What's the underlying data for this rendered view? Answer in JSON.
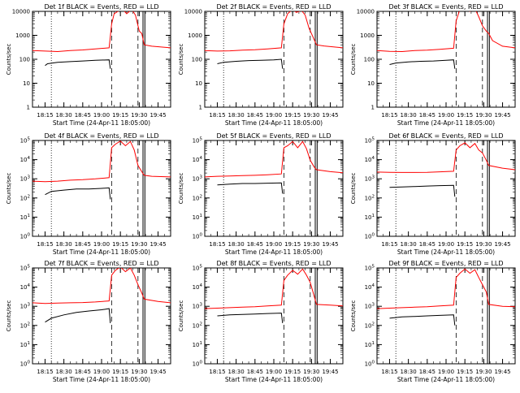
{
  "colors": {
    "events": "#000000",
    "lld": "#ff0000",
    "axis": "#000000",
    "background": "#ffffff"
  },
  "shared": {
    "xlabel": "Start Time (24-Apr-11 18:05:00)",
    "ylabel": "Counts/sec",
    "x_ticks": [
      "18:15",
      "18:30",
      "18:45",
      "19:00",
      "19:15",
      "19:30",
      "19:45"
    ],
    "x_tick_minutes": [
      10,
      25,
      40,
      55,
      70,
      85,
      100
    ],
    "x_range_minutes": [
      0,
      110
    ],
    "y_scale": "log",
    "y_range": [
      1,
      10000
    ],
    "dotted_marker_minutes": 15,
    "dashed_marker_minutes": [
      63,
      84
    ],
    "solid_marker_minutes": [
      88,
      89.5
    ]
  },
  "chart_data": [
    {
      "type": "line",
      "title": "Det 1f BLACK = Events, RED = LLD",
      "ytick_style": "plain",
      "y_ticks": [
        "1",
        "10",
        "100",
        "1000",
        "10000"
      ],
      "series": [
        {
          "name": "BLACK = Events",
          "points": [
            [
              10,
              55
            ],
            [
              12,
              65
            ],
            [
              20,
              75
            ],
            [
              30,
              80
            ],
            [
              40,
              85
            ],
            [
              50,
              90
            ],
            [
              61,
              95
            ],
            [
              62,
              40
            ]
          ]
        },
        {
          "name": "RED = LLD",
          "points": [
            [
              0,
              230
            ],
            [
              10,
              220
            ],
            [
              20,
              210
            ],
            [
              30,
              230
            ],
            [
              40,
              245
            ],
            [
              50,
              270
            ],
            [
              61,
              300
            ],
            [
              63,
              3000
            ],
            [
              65,
              8000
            ],
            [
              68,
              10000
            ],
            [
              72,
              12000
            ],
            [
              75,
              8000
            ],
            [
              79,
              12000
            ],
            [
              82,
              7000
            ],
            [
              85,
              1500
            ],
            [
              87,
              1200
            ],
            [
              89,
              400
            ],
            [
              95,
              350
            ],
            [
              110,
              300
            ]
          ]
        }
      ]
    },
    {
      "type": "line",
      "title": "Det 2f BLACK = Events, RED = LLD",
      "ytick_style": "plain",
      "y_ticks": [
        "1",
        "10",
        "100",
        "1000",
        "10000"
      ],
      "series": [
        {
          "name": "BLACK = Events",
          "points": [
            [
              10,
              65
            ],
            [
              15,
              75
            ],
            [
              25,
              82
            ],
            [
              35,
              88
            ],
            [
              45,
              90
            ],
            [
              55,
              95
            ],
            [
              61,
              100
            ],
            [
              62,
              40
            ]
          ]
        },
        {
          "name": "RED = LLD",
          "points": [
            [
              0,
              230
            ],
            [
              10,
              220
            ],
            [
              20,
              225
            ],
            [
              30,
              240
            ],
            [
              40,
              250
            ],
            [
              50,
              270
            ],
            [
              61,
              300
            ],
            [
              63,
              3000
            ],
            [
              66,
              8000
            ],
            [
              70,
              12000
            ],
            [
              73,
              9000
            ],
            [
              77,
              11000
            ],
            [
              80,
              7000
            ],
            [
              83,
              2000
            ],
            [
              86,
              900
            ],
            [
              89,
              400
            ],
            [
              95,
              360
            ],
            [
              110,
              300
            ]
          ]
        }
      ]
    },
    {
      "type": "line",
      "title": "Det 3f BLACK = Events, RED = LLD",
      "ytick_style": "plain",
      "y_ticks": [
        "1",
        "10",
        "100",
        "1000",
        "10000"
      ],
      "series": [
        {
          "name": "BLACK = Events",
          "points": [
            [
              10,
              60
            ],
            [
              15,
              70
            ],
            [
              25,
              78
            ],
            [
              35,
              82
            ],
            [
              45,
              85
            ],
            [
              55,
              90
            ],
            [
              61,
              95
            ],
            [
              62,
              40
            ]
          ]
        },
        {
          "name": "RED = LLD",
          "points": [
            [
              0,
              230
            ],
            [
              10,
              215
            ],
            [
              20,
              210
            ],
            [
              30,
              230
            ],
            [
              40,
              240
            ],
            [
              50,
              260
            ],
            [
              61,
              290
            ],
            [
              63,
              4000
            ],
            [
              66,
              12000
            ],
            [
              70,
              14000
            ],
            [
              74,
              10000
            ],
            [
              78,
              13000
            ],
            [
              81,
              6000
            ],
            [
              84,
              2500
            ],
            [
              87,
              1500
            ],
            [
              89,
              1200
            ],
            [
              92,
              600
            ],
            [
              100,
              350
            ],
            [
              110,
              300
            ]
          ]
        }
      ]
    },
    {
      "type": "line",
      "title": "Det 4f BLACK = Events, RED = LLD",
      "ytick_style": "power",
      "y_ticks": [
        "0",
        "1",
        "2",
        "3",
        "4",
        "5"
      ],
      "series": [
        {
          "name": "BLACK = Events",
          "points": [
            [
              10,
              55
            ],
            [
              15,
              75
            ],
            [
              25,
              85
            ],
            [
              35,
              95
            ],
            [
              45,
              95
            ],
            [
              55,
              100
            ],
            [
              61,
              105
            ],
            [
              62,
              35
            ]
          ]
        },
        {
          "name": "RED = LLD",
          "points": [
            [
              0,
              200
            ],
            [
              10,
              190
            ],
            [
              20,
              200
            ],
            [
              30,
              220
            ],
            [
              40,
              230
            ],
            [
              50,
              250
            ],
            [
              61,
              280
            ],
            [
              63,
              5000
            ],
            [
              66,
              7000
            ],
            [
              70,
              9500
            ],
            [
              74,
              6000
            ],
            [
              78,
              9000
            ],
            [
              81,
              4000
            ],
            [
              84,
              900
            ],
            [
              87,
              500
            ],
            [
              89,
              350
            ],
            [
              95,
              320
            ],
            [
              110,
              300
            ]
          ]
        }
      ]
    },
    {
      "type": "line",
      "title": "Det 5f BLACK = Events, RED = LLD",
      "ytick_style": "power",
      "y_ticks": [
        "0",
        "1",
        "2",
        "3",
        "4",
        "5"
      ],
      "series": [
        {
          "name": "BLACK = Events",
          "points": [
            [
              10,
              140
            ],
            [
              20,
              150
            ],
            [
              30,
              160
            ],
            [
              40,
              160
            ],
            [
              50,
              165
            ],
            [
              61,
              170
            ],
            [
              62,
              60
            ]
          ]
        },
        {
          "name": "RED = LLD",
          "points": [
            [
              0,
              300
            ],
            [
              10,
              320
            ],
            [
              20,
              330
            ],
            [
              30,
              340
            ],
            [
              40,
              350
            ],
            [
              50,
              370
            ],
            [
              61,
              400
            ],
            [
              63,
              5000
            ],
            [
              66,
              6000
            ],
            [
              70,
              9000
            ],
            [
              74,
              5000
            ],
            [
              78,
              9000
            ],
            [
              81,
              4500
            ],
            [
              84,
              1500
            ],
            [
              87,
              800
            ],
            [
              89,
              600
            ],
            [
              100,
              500
            ],
            [
              110,
              450
            ]
          ]
        }
      ]
    },
    {
      "type": "line",
      "title": "Det 6f BLACK = Events, RED = LLD",
      "ytick_style": "power",
      "y_ticks": [
        "0",
        "1",
        "2",
        "3",
        "4",
        "5"
      ],
      "series": [
        {
          "name": "BLACK = Events",
          "points": [
            [
              10,
              110
            ],
            [
              20,
              115
            ],
            [
              30,
              120
            ],
            [
              40,
              125
            ],
            [
              50,
              130
            ],
            [
              61,
              135
            ],
            [
              62,
              45
            ]
          ]
        },
        {
          "name": "RED = LLD",
          "points": [
            [
              0,
              480
            ],
            [
              10,
              470
            ],
            [
              20,
              460
            ],
            [
              30,
              460
            ],
            [
              40,
              470
            ],
            [
              50,
              490
            ],
            [
              61,
              520
            ],
            [
              63,
              4000
            ],
            [
              66,
              6000
            ],
            [
              70,
              8000
            ],
            [
              74,
              5000
            ],
            [
              78,
              7500
            ],
            [
              81,
              4000
            ],
            [
              84,
              3000
            ],
            [
              87,
              1500
            ],
            [
              89,
              900
            ],
            [
              100,
              700
            ],
            [
              110,
              600
            ]
          ]
        }
      ]
    },
    {
      "type": "line",
      "title": "Det 7f BLACK = Events, RED = LLD",
      "ytick_style": "power",
      "y_ticks": [
        "0",
        "1",
        "2",
        "3",
        "4",
        "5"
      ],
      "series": [
        {
          "name": "BLACK = Events",
          "points": [
            [
              10,
              55
            ],
            [
              15,
              80
            ],
            [
              25,
              110
            ],
            [
              35,
              140
            ],
            [
              45,
              160
            ],
            [
              55,
              180
            ],
            [
              61,
              200
            ],
            [
              62,
              50
            ]
          ]
        },
        {
          "name": "RED = LLD",
          "points": [
            [
              0,
              350
            ],
            [
              10,
              330
            ],
            [
              20,
              340
            ],
            [
              30,
              350
            ],
            [
              40,
              360
            ],
            [
              50,
              380
            ],
            [
              61,
              420
            ],
            [
              63,
              5000
            ],
            [
              66,
              8000
            ],
            [
              70,
              11000
            ],
            [
              74,
              7000
            ],
            [
              78,
              10000
            ],
            [
              81,
              5000
            ],
            [
              84,
              2000
            ],
            [
              87,
              900
            ],
            [
              89,
              500
            ],
            [
              100,
              400
            ],
            [
              110,
              350
            ]
          ]
        }
      ]
    },
    {
      "type": "line",
      "title": "Det 8f BLACK = Events, RED = LLD",
      "ytick_style": "power",
      "y_ticks": [
        "0",
        "1",
        "2",
        "3",
        "4",
        "5"
      ],
      "series": [
        {
          "name": "BLACK = Events",
          "points": [
            [
              10,
              100
            ],
            [
              20,
              110
            ],
            [
              30,
              115
            ],
            [
              40,
              120
            ],
            [
              50,
              125
            ],
            [
              61,
              130
            ],
            [
              62,
              50
            ]
          ]
        },
        {
          "name": "RED = LLD",
          "points": [
            [
              0,
              200
            ],
            [
              10,
              210
            ],
            [
              20,
              220
            ],
            [
              30,
              230
            ],
            [
              40,
              240
            ],
            [
              50,
              260
            ],
            [
              61,
              280
            ],
            [
              63,
              3000
            ],
            [
              66,
              5000
            ],
            [
              70,
              8000
            ],
            [
              74,
              5500
            ],
            [
              78,
              9000
            ],
            [
              81,
              5000
            ],
            [
              84,
              2500
            ],
            [
              87,
              700
            ],
            [
              89,
              300
            ],
            [
              100,
              280
            ],
            [
              110,
              260
            ]
          ]
        }
      ]
    },
    {
      "type": "line",
      "title": "Det 9f BLACK = Events, RED = LLD",
      "ytick_style": "power",
      "y_ticks": [
        "0",
        "1",
        "2",
        "3",
        "4",
        "5"
      ],
      "series": [
        {
          "name": "BLACK = Events",
          "points": [
            [
              10,
              80
            ],
            [
              20,
              90
            ],
            [
              30,
              95
            ],
            [
              40,
              100
            ],
            [
              50,
              105
            ],
            [
              61,
              110
            ],
            [
              62,
              40
            ]
          ]
        },
        {
          "name": "RED = LLD",
          "points": [
            [
              0,
              200
            ],
            [
              10,
              210
            ],
            [
              20,
              220
            ],
            [
              30,
              230
            ],
            [
              40,
              240
            ],
            [
              50,
              260
            ],
            [
              61,
              280
            ],
            [
              63,
              4000
            ],
            [
              66,
              6000
            ],
            [
              70,
              9000
            ],
            [
              74,
              6000
            ],
            [
              78,
              8500
            ],
            [
              81,
              4000
            ],
            [
              84,
              2000
            ],
            [
              87,
              1000
            ],
            [
              89,
              300
            ],
            [
              100,
              250
            ],
            [
              110,
              240
            ]
          ]
        }
      ]
    }
  ]
}
